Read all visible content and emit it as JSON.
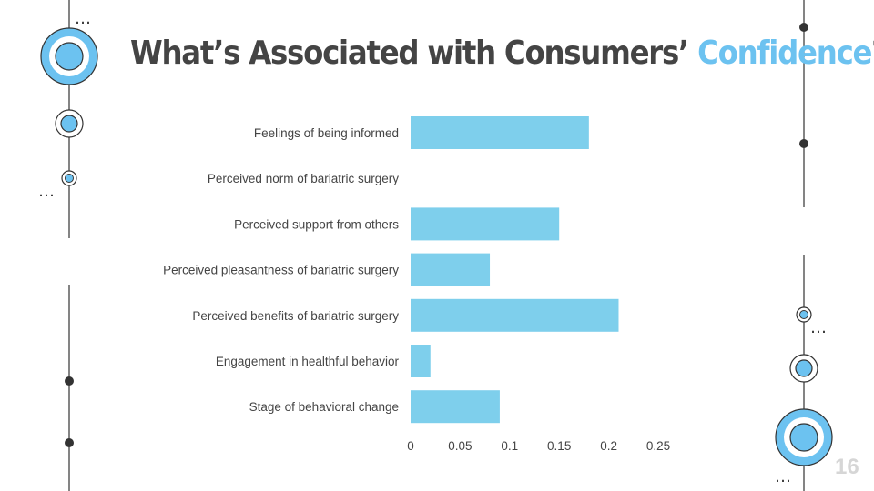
{
  "slide": {
    "title_main": "What’s Associated with Consumers’ ",
    "title_accent": "Confidence",
    "title_end": "?",
    "page_number": "16",
    "ellipsis": "…"
  },
  "colors": {
    "accent": "#6cc2f0",
    "bar": "#7ecfec",
    "text": "#444444",
    "line": "#333333"
  },
  "chart_data": {
    "type": "bar",
    "orientation": "horizontal",
    "categories": [
      "Feelings of being informed",
      "Perceived norm of bariatric surgery",
      "Perceived support from others",
      "Perceived pleasantness of bariatric surgery",
      "Perceived benefits of bariatric surgery",
      "Engagement in healthful behavior",
      "Stage of behavioral change"
    ],
    "values": [
      0.18,
      0,
      0.15,
      0.08,
      0.21,
      0.02,
      0.09
    ],
    "xlim": [
      0,
      0.25
    ],
    "xticks": [
      0,
      0.05,
      0.1,
      0.15,
      0.2,
      0.25
    ],
    "xtick_labels": [
      "0",
      "0.05",
      "0.1",
      "0.15",
      "0.2",
      "0.25"
    ],
    "title": "",
    "xlabel": "",
    "ylabel": "",
    "grid": false
  }
}
